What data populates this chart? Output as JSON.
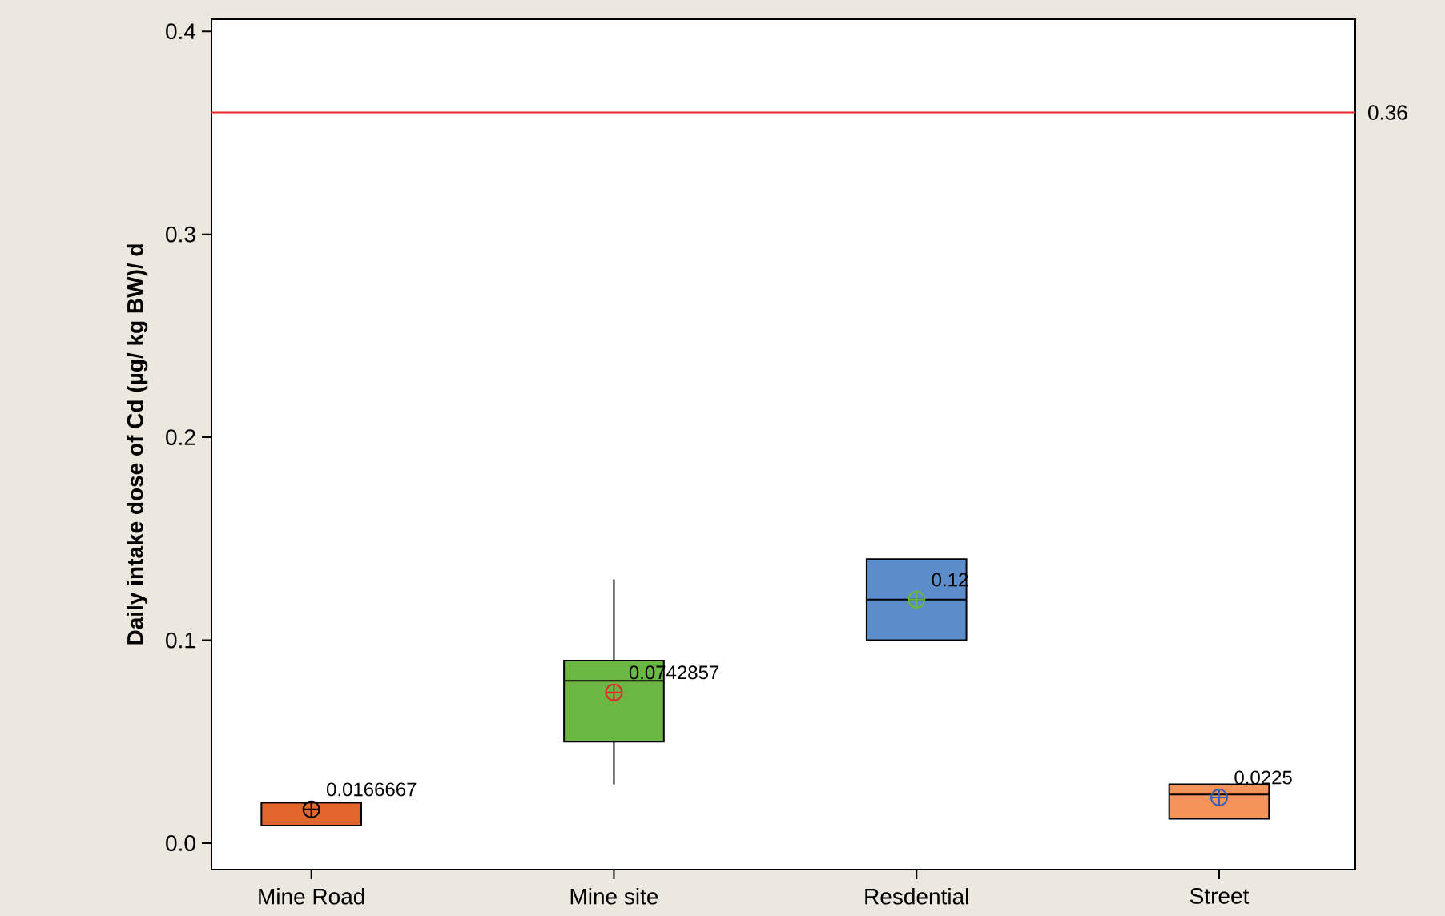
{
  "chart_data": {
    "type": "box",
    "ylabel": "Daily intake dose of Cd (µg/ kg BW)/ d",
    "categories": [
      "Mine Road",
      "Mine site",
      "Resdential",
      "Street"
    ],
    "ylim": [
      -0.013,
      0.406
    ],
    "yticks": [
      {
        "value": 0,
        "label": "0.0"
      },
      0.1,
      0.2,
      0.3,
      0.4
    ],
    "series": [
      {
        "colors": [
          "#e2672a",
          "#6ab843",
          "#5b8dcb",
          "#f4935a"
        ],
        "boxes": [
          {
            "low": 0.0087,
            "q1": 0.0087,
            "median": 0.02,
            "q3": 0.02,
            "high": 0.02
          },
          {
            "low": 0.029,
            "q1": 0.05,
            "median": 0.08,
            "q3": 0.09,
            "high": 0.13
          },
          {
            "low": 0.1,
            "q1": 0.1,
            "median": 0.12,
            "q3": 0.14,
            "high": 0.14
          },
          {
            "low": 0.012,
            "q1": 0.012,
            "median": 0.024,
            "q3": 0.029,
            "high": 0.029
          }
        ]
      },
      {
        "type": "scatter",
        "marker": "cross",
        "x": [
          "Mine Road",
          "Mine site",
          "Resdential",
          "Street"
        ],
        "values": [
          0.0166667,
          0.0742857,
          0.12,
          0.0225
        ],
        "colors": [
          "#000000",
          "#e8242a",
          "#6ab843",
          "#3a5fb0"
        ],
        "value_labels": [
          "0.0166667",
          "0.0742857",
          "0.12",
          "0.0225"
        ]
      }
    ],
    "ref_lines": [
      {
        "axis": "y",
        "value": 0.36,
        "label": "0.36",
        "color": "#e8242a"
      }
    ]
  }
}
